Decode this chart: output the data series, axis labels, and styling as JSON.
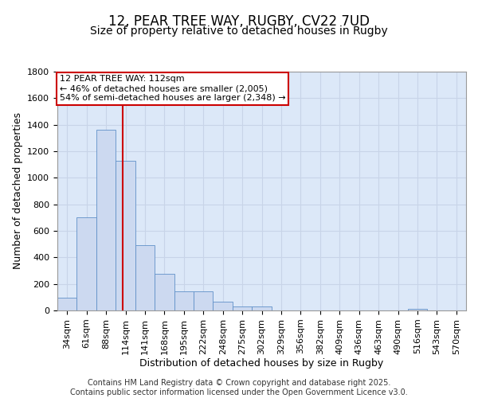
{
  "title_line1": "12, PEAR TREE WAY, RUGBY, CV22 7UD",
  "title_line2": "Size of property relative to detached houses in Rugby",
  "xlabel": "Distribution of detached houses by size in Rugby",
  "ylabel": "Number of detached properties",
  "categories": [
    "34sqm",
    "61sqm",
    "88sqm",
    "114sqm",
    "141sqm",
    "168sqm",
    "195sqm",
    "222sqm",
    "248sqm",
    "275sqm",
    "302sqm",
    "329sqm",
    "356sqm",
    "382sqm",
    "409sqm",
    "436sqm",
    "463sqm",
    "490sqm",
    "516sqm",
    "543sqm",
    "570sqm"
  ],
  "values": [
    95,
    700,
    1360,
    1130,
    490,
    275,
    145,
    145,
    65,
    30,
    30,
    0,
    0,
    0,
    0,
    0,
    0,
    0,
    15,
    0,
    0
  ],
  "bar_color": "#ccd9f0",
  "bar_edge_color": "#6090c8",
  "vline_color": "#cc0000",
  "vline_pos": 2.85,
  "annotation_text": "12 PEAR TREE WAY: 112sqm\n← 46% of detached houses are smaller (2,005)\n54% of semi-detached houses are larger (2,348) →",
  "annotation_box_color": "#cc0000",
  "ylim": [
    0,
    1800
  ],
  "yticks": [
    0,
    200,
    400,
    600,
    800,
    1000,
    1200,
    1400,
    1600,
    1800
  ],
  "grid_color": "#c8d4e8",
  "background_color": "#dce8f8",
  "footer_text": "Contains HM Land Registry data © Crown copyright and database right 2025.\nContains public sector information licensed under the Open Government Licence v3.0.",
  "title_fontsize": 12,
  "subtitle_fontsize": 10,
  "tick_fontsize": 8,
  "ylabel_fontsize": 9,
  "xlabel_fontsize": 9,
  "annotation_fontsize": 8,
  "footer_fontsize": 7
}
